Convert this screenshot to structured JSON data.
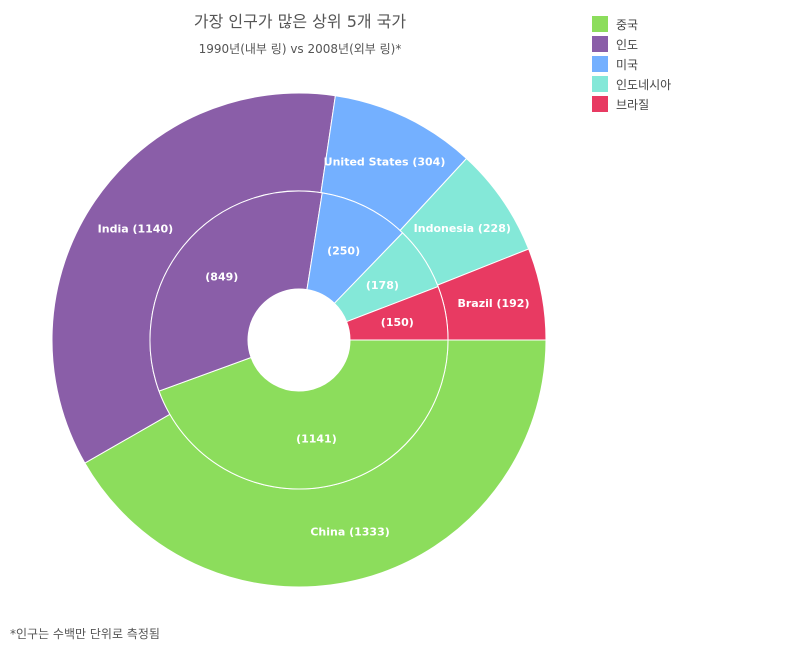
{
  "title": "가장 인구가 많은 상위 5개 국가",
  "subtitle": "1990년(내부 링) vs 2008년(외부 링)*",
  "footnote": "*인구는 수백만 단위로 측정됨",
  "legend": [
    {
      "label": "중국",
      "color": "#8cdd5c"
    },
    {
      "label": "인도",
      "color": "#8a5ea8"
    },
    {
      "label": "미국",
      "color": "#74b0ff"
    },
    {
      "label": "인도네시아",
      "color": "#84e8d8"
    },
    {
      "label": "브라질",
      "color": "#e83a62"
    }
  ],
  "chart_data": {
    "type": "pie",
    "subtype": "nested-donut",
    "categories": [
      "China",
      "India",
      "United States",
      "Indonesia",
      "Brazil"
    ],
    "colors": [
      "#8cdd5c",
      "#8a5ea8",
      "#74b0ff",
      "#84e8d8",
      "#e83a62"
    ],
    "series": [
      {
        "ring": "inner",
        "values": [
          1141,
          849,
          250,
          178,
          150
        ],
        "labels": [
          "(1141)",
          "(849)",
          "(250)",
          "(178)",
          "(150)"
        ]
      },
      {
        "ring": "outer",
        "values": [
          1333,
          1140,
          304,
          228,
          192
        ],
        "labels": [
          "China (1333)",
          "India (1140)",
          "United States (304)",
          "Indonesia (228)",
          "Brazil (192)"
        ]
      }
    ],
    "legend_position": "top-right"
  }
}
